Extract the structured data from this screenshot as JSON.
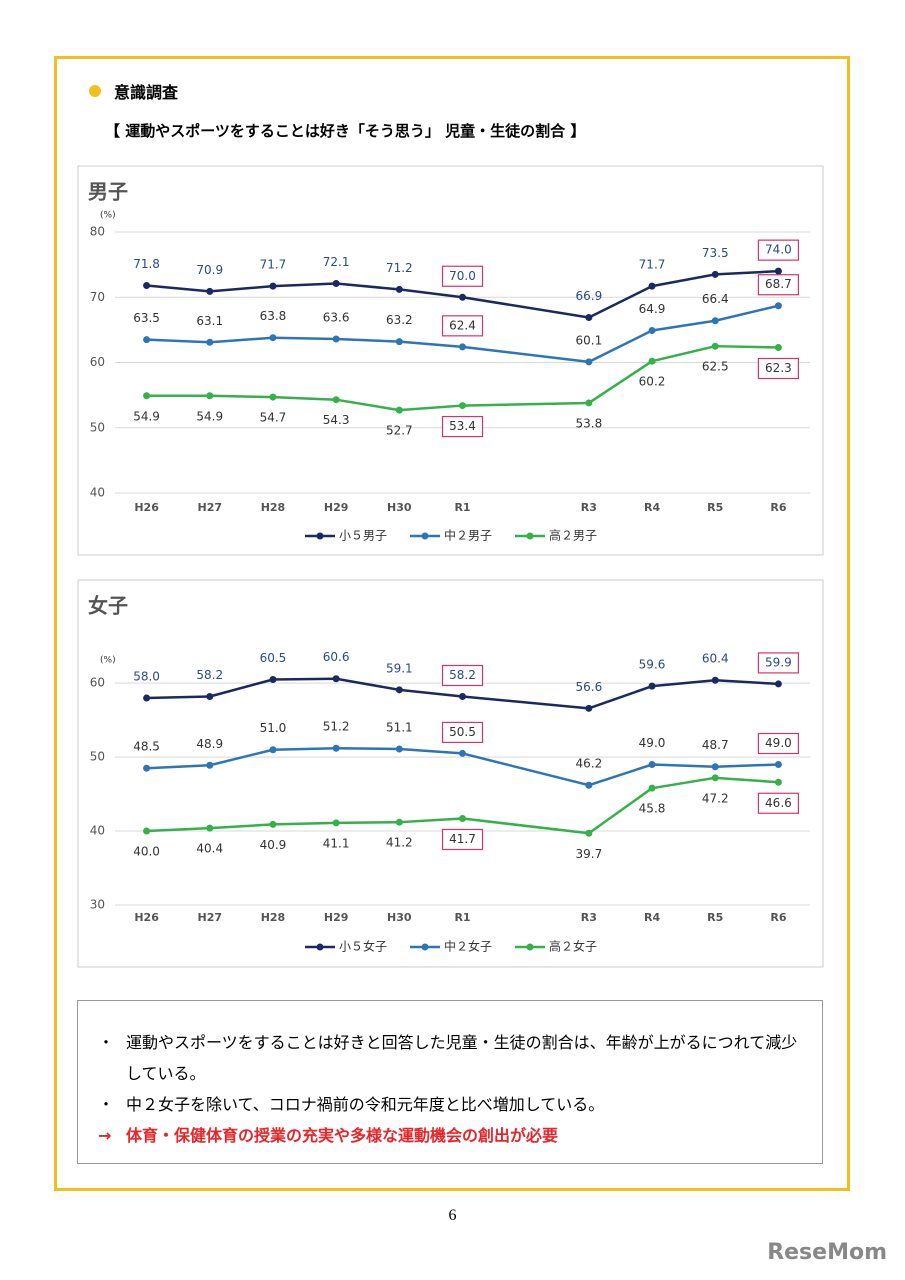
{
  "header": {
    "bullet_title": "意識調査",
    "subtitle": "【 運動やスポーツをすることは好き「そう思う」 児童・生徒の割合 】"
  },
  "chart_data": [
    {
      "type": "line",
      "title": "男子",
      "unit": "(%)",
      "categories": [
        "H26",
        "H27",
        "H28",
        "H29",
        "H30",
        "R1",
        null,
        "R3",
        "R4",
        "R5",
        "R6"
      ],
      "ylim": [
        40,
        80
      ],
      "yticks": [
        40,
        50,
        60,
        70,
        80
      ],
      "grid": true,
      "highlight_categories": [
        "R1",
        "R6"
      ],
      "highlight_color": "#d6336c",
      "legend": "bottom",
      "series": [
        {
          "name": "小５男子",
          "color": "#1b2a5e",
          "labels": "above",
          "values": [
            71.8,
            70.9,
            71.7,
            72.1,
            71.2,
            70.0,
            null,
            66.9,
            71.7,
            73.5,
            74.0
          ],
          "value_labels": [
            "71.8",
            "70.9",
            "71.7",
            "72.1",
            "71.2",
            "70.0",
            null,
            "66.9",
            "71.7",
            "73.5",
            "74.0"
          ]
        },
        {
          "name": "中２男子",
          "color": "#2e75b6",
          "labels": "above",
          "values": [
            63.5,
            63.1,
            63.8,
            63.6,
            63.2,
            62.4,
            null,
            60.1,
            64.9,
            66.4,
            68.7
          ],
          "value_labels": [
            "63.5",
            "63.1",
            "63.8",
            "63.6",
            "63.2",
            "62.4",
            null,
            "60.1",
            "64.9",
            "66.4",
            "68.7"
          ]
        },
        {
          "name": "高２男子",
          "color": "#35b04a",
          "labels": "below",
          "values": [
            54.9,
            54.9,
            54.7,
            54.3,
            52.7,
            53.4,
            null,
            53.8,
            60.2,
            62.5,
            62.3
          ],
          "value_labels": [
            "54.9",
            "54.9",
            "54.7",
            "54.3",
            "52.7",
            "53.4",
            null,
            "53.8",
            "60.2",
            "62.5",
            "62.3"
          ]
        }
      ]
    },
    {
      "type": "line",
      "title": "女子",
      "unit": "(%)",
      "categories": [
        "H26",
        "H27",
        "H28",
        "H29",
        "H30",
        "R1",
        null,
        "R3",
        "R4",
        "R5",
        "R6"
      ],
      "ylim": [
        30,
        63
      ],
      "yticks": [
        30,
        40,
        50,
        60
      ],
      "grid": true,
      "highlight_categories": [
        "R1",
        "R6"
      ],
      "highlight_color": "#d6336c",
      "legend": "bottom",
      "series": [
        {
          "name": "小５女子",
          "color": "#1b2a5e",
          "labels": "above",
          "values": [
            58.0,
            58.2,
            60.5,
            60.6,
            59.1,
            58.2,
            null,
            56.6,
            59.6,
            60.4,
            59.9
          ],
          "value_labels": [
            "58.0",
            "58.2",
            "60.5",
            "60.6",
            "59.1",
            "58.2",
            null,
            "56.6",
            "59.6",
            "60.4",
            "59.9"
          ]
        },
        {
          "name": "中２女子",
          "color": "#2e75b6",
          "labels": "above",
          "values": [
            48.5,
            48.9,
            51.0,
            51.2,
            51.1,
            50.5,
            null,
            46.2,
            49.0,
            48.7,
            49.0
          ],
          "value_labels": [
            "48.5",
            "48.9",
            "51.0",
            "51.2",
            "51.1",
            "50.5",
            null,
            "46.2",
            "49.0",
            "48.7",
            "49.0"
          ]
        },
        {
          "name": "高２女子",
          "color": "#35b04a",
          "labels": "below",
          "values": [
            40.0,
            40.4,
            40.9,
            41.1,
            41.2,
            41.7,
            null,
            39.7,
            45.8,
            47.2,
            46.6
          ],
          "value_labels": [
            "40.0",
            "40.4",
            "40.9",
            "41.1",
            "41.2",
            "41.7",
            null,
            "39.7",
            "45.8",
            "47.2",
            "46.6"
          ]
        }
      ]
    }
  ],
  "notes": {
    "items": [
      {
        "marker": "・",
        "text": "運動やスポーツをすることは好きと回答した児童・生徒の割合は、年齢が上がるにつれて減少している。"
      },
      {
        "marker": "・",
        "text": "中２女子を除いて、コロナ禍前の令和元年度と比べ増加している。"
      }
    ],
    "conclusion": {
      "marker": "→",
      "text": "体育・保健体育の授業の充実や多様な運動機会の創出が必要"
    }
  },
  "page_number": "6",
  "logo": "ReseMom"
}
